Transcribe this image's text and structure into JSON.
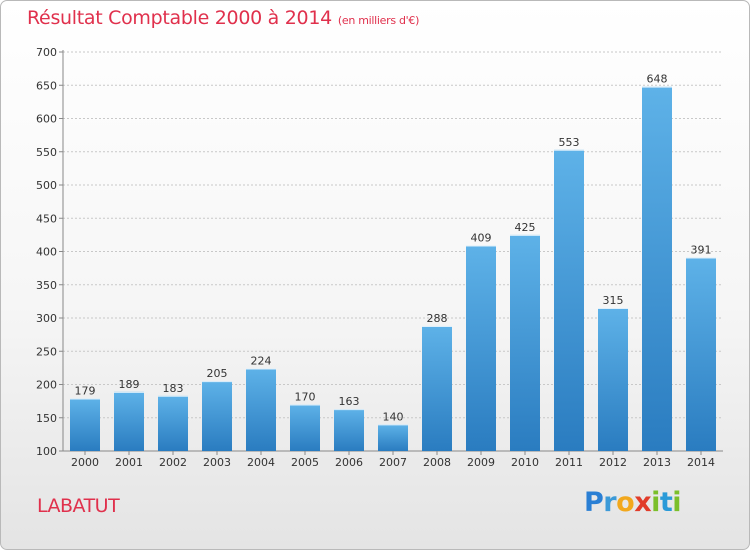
{
  "header": {
    "title": "Résultat Comptable 2000 à 2014",
    "subtitle": "(en milliers d'€)"
  },
  "commune": "LABATUT",
  "logo": {
    "text": "Proxiti",
    "letters": [
      {
        "ch": "P",
        "color": "#2a7fd4"
      },
      {
        "ch": "r",
        "color": "#3c9ad8"
      },
      {
        "ch": "o",
        "color": "#f2a81d"
      },
      {
        "ch": "x",
        "color": "#e13c2a"
      },
      {
        "ch": "i",
        "color": "#7bbf2a"
      },
      {
        "ch": "t",
        "color": "#2a9ad8"
      },
      {
        "ch": "i",
        "color": "#7bbf2a"
      }
    ]
  },
  "colors": {
    "accent": "#e0304c",
    "bar_top": "#5eb2e8",
    "bar_bottom": "#2a7cc0",
    "grid": "#c8c8c8"
  },
  "chart_data": {
    "type": "bar",
    "categories": [
      "2000",
      "2001",
      "2002",
      "2003",
      "2004",
      "2005",
      "2006",
      "2007",
      "2008",
      "2009",
      "2010",
      "2011",
      "2012",
      "2013",
      "2014"
    ],
    "values": [
      179,
      189,
      183,
      205,
      224,
      170,
      163,
      140,
      288,
      409,
      425,
      553,
      315,
      648,
      391
    ],
    "ylim": [
      100,
      700
    ],
    "yticks": [
      100,
      150,
      200,
      250,
      300,
      350,
      400,
      450,
      500,
      550,
      600,
      650,
      700
    ],
    "grid": true,
    "xlabel": "",
    "ylabel": ""
  }
}
